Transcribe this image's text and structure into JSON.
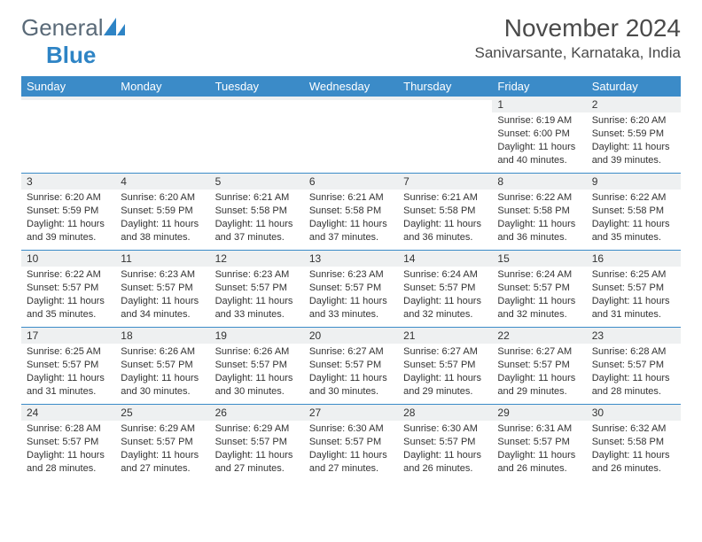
{
  "brand": {
    "name_part1": "General",
    "name_part2": "Blue",
    "text_color": "#5a6a78",
    "accent_color": "#2e84c5"
  },
  "title": "November 2024",
  "location": "Sanivarsante, Karnataka, India",
  "header_bg": "#3b8bc8",
  "header_fg": "#ffffff",
  "daynum_bg": "#eef0f1",
  "border_color": "#3b8bc8",
  "background_color": "#ffffff",
  "text_color": "#333333",
  "font_family": "Arial, Helvetica, sans-serif",
  "title_fontsize": 28,
  "location_fontsize": 17,
  "dayheader_fontsize": 13,
  "daynum_fontsize": 12,
  "detail_fontsize": 11,
  "day_headers": [
    "Sunday",
    "Monday",
    "Tuesday",
    "Wednesday",
    "Thursday",
    "Friday",
    "Saturday"
  ],
  "weeks": [
    [
      {
        "day": "",
        "sunrise": "",
        "sunset": "",
        "daylight": ""
      },
      {
        "day": "",
        "sunrise": "",
        "sunset": "",
        "daylight": ""
      },
      {
        "day": "",
        "sunrise": "",
        "sunset": "",
        "daylight": ""
      },
      {
        "day": "",
        "sunrise": "",
        "sunset": "",
        "daylight": ""
      },
      {
        "day": "",
        "sunrise": "",
        "sunset": "",
        "daylight": ""
      },
      {
        "day": "1",
        "sunrise": "Sunrise: 6:19 AM",
        "sunset": "Sunset: 6:00 PM",
        "daylight": "Daylight: 11 hours and 40 minutes."
      },
      {
        "day": "2",
        "sunrise": "Sunrise: 6:20 AM",
        "sunset": "Sunset: 5:59 PM",
        "daylight": "Daylight: 11 hours and 39 minutes."
      }
    ],
    [
      {
        "day": "3",
        "sunrise": "Sunrise: 6:20 AM",
        "sunset": "Sunset: 5:59 PM",
        "daylight": "Daylight: 11 hours and 39 minutes."
      },
      {
        "day": "4",
        "sunrise": "Sunrise: 6:20 AM",
        "sunset": "Sunset: 5:59 PM",
        "daylight": "Daylight: 11 hours and 38 minutes."
      },
      {
        "day": "5",
        "sunrise": "Sunrise: 6:21 AM",
        "sunset": "Sunset: 5:58 PM",
        "daylight": "Daylight: 11 hours and 37 minutes."
      },
      {
        "day": "6",
        "sunrise": "Sunrise: 6:21 AM",
        "sunset": "Sunset: 5:58 PM",
        "daylight": "Daylight: 11 hours and 37 minutes."
      },
      {
        "day": "7",
        "sunrise": "Sunrise: 6:21 AM",
        "sunset": "Sunset: 5:58 PM",
        "daylight": "Daylight: 11 hours and 36 minutes."
      },
      {
        "day": "8",
        "sunrise": "Sunrise: 6:22 AM",
        "sunset": "Sunset: 5:58 PM",
        "daylight": "Daylight: 11 hours and 36 minutes."
      },
      {
        "day": "9",
        "sunrise": "Sunrise: 6:22 AM",
        "sunset": "Sunset: 5:58 PM",
        "daylight": "Daylight: 11 hours and 35 minutes."
      }
    ],
    [
      {
        "day": "10",
        "sunrise": "Sunrise: 6:22 AM",
        "sunset": "Sunset: 5:57 PM",
        "daylight": "Daylight: 11 hours and 35 minutes."
      },
      {
        "day": "11",
        "sunrise": "Sunrise: 6:23 AM",
        "sunset": "Sunset: 5:57 PM",
        "daylight": "Daylight: 11 hours and 34 minutes."
      },
      {
        "day": "12",
        "sunrise": "Sunrise: 6:23 AM",
        "sunset": "Sunset: 5:57 PM",
        "daylight": "Daylight: 11 hours and 33 minutes."
      },
      {
        "day": "13",
        "sunrise": "Sunrise: 6:23 AM",
        "sunset": "Sunset: 5:57 PM",
        "daylight": "Daylight: 11 hours and 33 minutes."
      },
      {
        "day": "14",
        "sunrise": "Sunrise: 6:24 AM",
        "sunset": "Sunset: 5:57 PM",
        "daylight": "Daylight: 11 hours and 32 minutes."
      },
      {
        "day": "15",
        "sunrise": "Sunrise: 6:24 AM",
        "sunset": "Sunset: 5:57 PM",
        "daylight": "Daylight: 11 hours and 32 minutes."
      },
      {
        "day": "16",
        "sunrise": "Sunrise: 6:25 AM",
        "sunset": "Sunset: 5:57 PM",
        "daylight": "Daylight: 11 hours and 31 minutes."
      }
    ],
    [
      {
        "day": "17",
        "sunrise": "Sunrise: 6:25 AM",
        "sunset": "Sunset: 5:57 PM",
        "daylight": "Daylight: 11 hours and 31 minutes."
      },
      {
        "day": "18",
        "sunrise": "Sunrise: 6:26 AM",
        "sunset": "Sunset: 5:57 PM",
        "daylight": "Daylight: 11 hours and 30 minutes."
      },
      {
        "day": "19",
        "sunrise": "Sunrise: 6:26 AM",
        "sunset": "Sunset: 5:57 PM",
        "daylight": "Daylight: 11 hours and 30 minutes."
      },
      {
        "day": "20",
        "sunrise": "Sunrise: 6:27 AM",
        "sunset": "Sunset: 5:57 PM",
        "daylight": "Daylight: 11 hours and 30 minutes."
      },
      {
        "day": "21",
        "sunrise": "Sunrise: 6:27 AM",
        "sunset": "Sunset: 5:57 PM",
        "daylight": "Daylight: 11 hours and 29 minutes."
      },
      {
        "day": "22",
        "sunrise": "Sunrise: 6:27 AM",
        "sunset": "Sunset: 5:57 PM",
        "daylight": "Daylight: 11 hours and 29 minutes."
      },
      {
        "day": "23",
        "sunrise": "Sunrise: 6:28 AM",
        "sunset": "Sunset: 5:57 PM",
        "daylight": "Daylight: 11 hours and 28 minutes."
      }
    ],
    [
      {
        "day": "24",
        "sunrise": "Sunrise: 6:28 AM",
        "sunset": "Sunset: 5:57 PM",
        "daylight": "Daylight: 11 hours and 28 minutes."
      },
      {
        "day": "25",
        "sunrise": "Sunrise: 6:29 AM",
        "sunset": "Sunset: 5:57 PM",
        "daylight": "Daylight: 11 hours and 27 minutes."
      },
      {
        "day": "26",
        "sunrise": "Sunrise: 6:29 AM",
        "sunset": "Sunset: 5:57 PM",
        "daylight": "Daylight: 11 hours and 27 minutes."
      },
      {
        "day": "27",
        "sunrise": "Sunrise: 6:30 AM",
        "sunset": "Sunset: 5:57 PM",
        "daylight": "Daylight: 11 hours and 27 minutes."
      },
      {
        "day": "28",
        "sunrise": "Sunrise: 6:30 AM",
        "sunset": "Sunset: 5:57 PM",
        "daylight": "Daylight: 11 hours and 26 minutes."
      },
      {
        "day": "29",
        "sunrise": "Sunrise: 6:31 AM",
        "sunset": "Sunset: 5:57 PM",
        "daylight": "Daylight: 11 hours and 26 minutes."
      },
      {
        "day": "30",
        "sunrise": "Sunrise: 6:32 AM",
        "sunset": "Sunset: 5:58 PM",
        "daylight": "Daylight: 11 hours and 26 minutes."
      }
    ]
  ]
}
